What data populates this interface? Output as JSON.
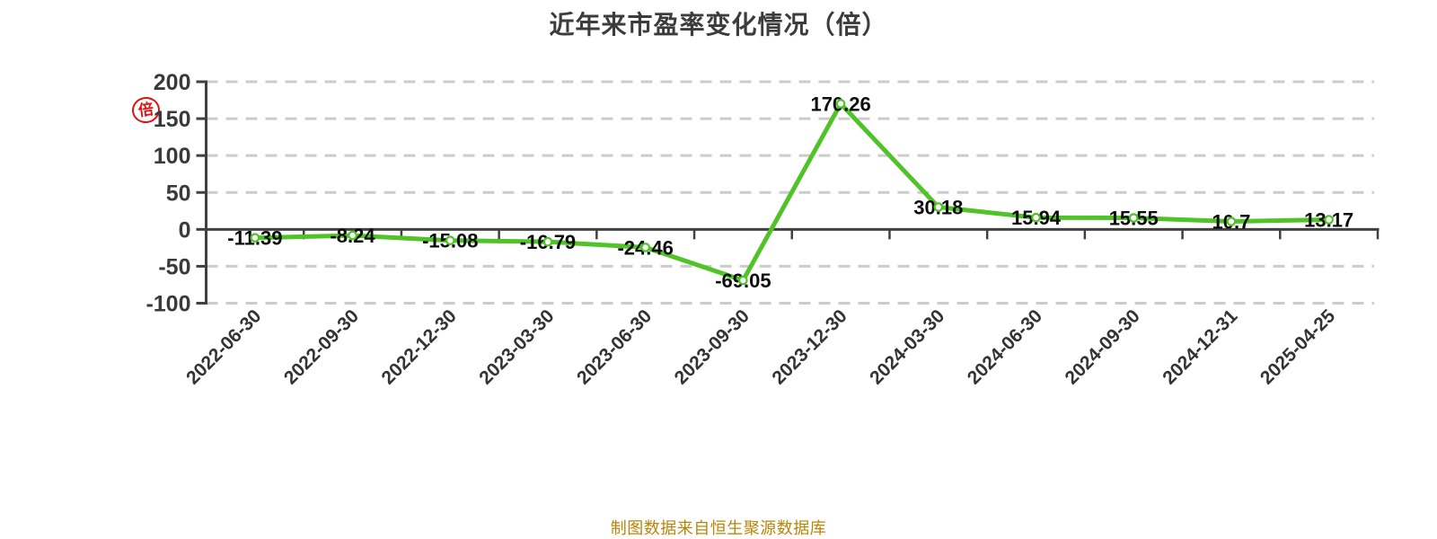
{
  "title": "近年来市盈率变化情况（倍）",
  "stamp_text": "倍",
  "footer": "制图数据来自恒生聚源数据库",
  "chart_data": {
    "type": "line",
    "title": "近年来市盈率变化情况（倍）",
    "categories": [
      "2022-06-30",
      "2022-09-30",
      "2022-12-30",
      "2023-03-30",
      "2023-06-30",
      "2023-09-30",
      "2023-12-30",
      "2024-03-30",
      "2024-06-30",
      "2024-09-30",
      "2024-12-31",
      "2025-04-25"
    ],
    "values": [
      -11.39,
      -8.24,
      -15.08,
      -16.79,
      -24.46,
      -69.05,
      170.26,
      30.18,
      15.94,
      15.55,
      10.7,
      13.17
    ],
    "ylim": [
      -100,
      200
    ],
    "yticks": [
      200,
      150,
      100,
      50,
      0,
      -50,
      -100
    ],
    "grid": "dashed horizontal",
    "legend": "none",
    "line_color": "#50c328",
    "marker": "white-circle-green-border",
    "grid_color": "#cccccc",
    "axis_color": "#404040",
    "axis_label_color": "#3a3a3a",
    "data_label_color": "#0d0d0d"
  }
}
